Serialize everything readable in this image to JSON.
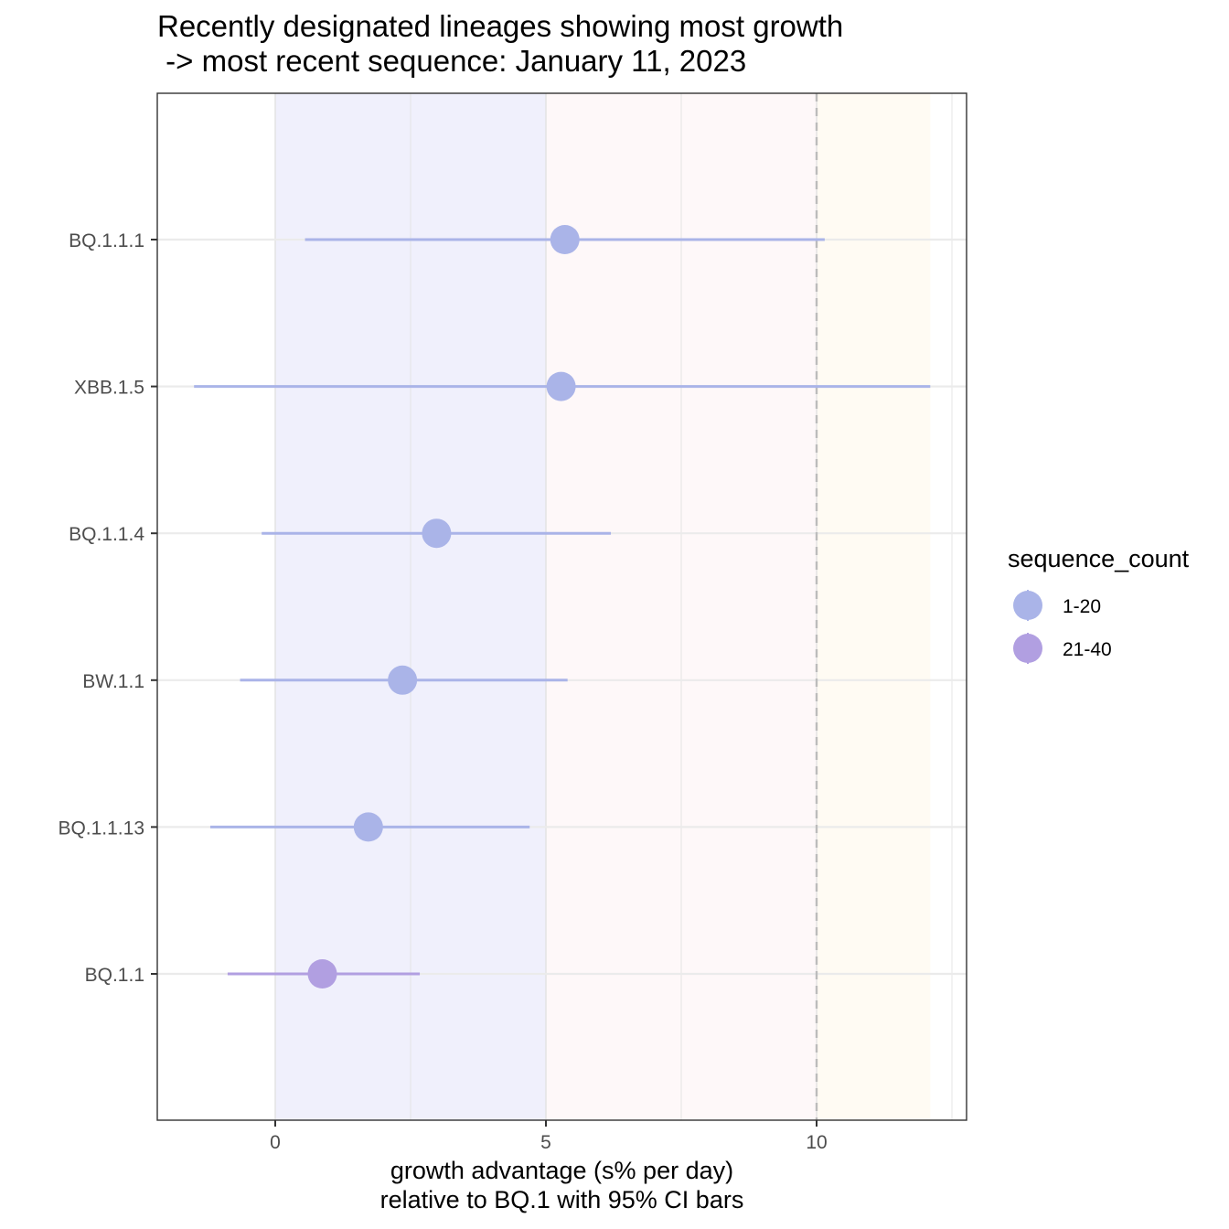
{
  "chart_data": {
    "type": "scatter",
    "title_line1": "Recently designated lineages showing most growth",
    "title_line2": " -> most recent sequence: January 11, 2023",
    "xlabel_line1": "growth advantage (s% per day)",
    "xlabel_line2": "relative to  BQ.1  with 95% CI bars",
    "ylabel": "",
    "xlim": [
      -2.2,
      12.7
    ],
    "x_ticks": [
      0,
      5,
      10
    ],
    "x_tick_labels": [
      "0",
      "5",
      "10"
    ],
    "reference_line": 10,
    "shaded_bands": [
      {
        "from": 0,
        "to": 5,
        "color": "#ebebfb"
      },
      {
        "from": 5,
        "to": 10,
        "color": "#fdf6f7"
      },
      {
        "from": 10,
        "to": 12.1,
        "color": "#fff9ef"
      }
    ],
    "categories": [
      "BQ.1.1.1",
      "XBB.1.5",
      "BQ.1.1.4",
      "BW.1.1",
      "BQ.1.1.13",
      "BQ.1.1"
    ],
    "points": [
      {
        "lineage": "BQ.1.1.1",
        "value": 5.35,
        "ci_low": 0.55,
        "ci_high": 10.15,
        "sequence_count": "1-20"
      },
      {
        "lineage": "XBB.1.5",
        "value": 5.28,
        "ci_low": -1.5,
        "ci_high": 12.1,
        "sequence_count": "1-20"
      },
      {
        "lineage": "BQ.1.1.4",
        "value": 2.98,
        "ci_low": -0.25,
        "ci_high": 6.2,
        "sequence_count": "1-20"
      },
      {
        "lineage": "BW.1.1",
        "value": 2.35,
        "ci_low": -0.65,
        "ci_high": 5.4,
        "sequence_count": "1-20"
      },
      {
        "lineage": "BQ.1.1.13",
        "value": 1.72,
        "ci_low": -1.2,
        "ci_high": 4.7,
        "sequence_count": "1-20"
      },
      {
        "lineage": "BQ.1.1",
        "value": 0.87,
        "ci_low": -0.88,
        "ci_high": 2.67,
        "sequence_count": "21-40"
      }
    ],
    "legend": {
      "title": "sequence_count",
      "position": "right",
      "items": [
        {
          "label": "1-20",
          "color": "#aab4e8"
        },
        {
          "label": "21-40",
          "color": "#b19fe1"
        }
      ]
    }
  }
}
